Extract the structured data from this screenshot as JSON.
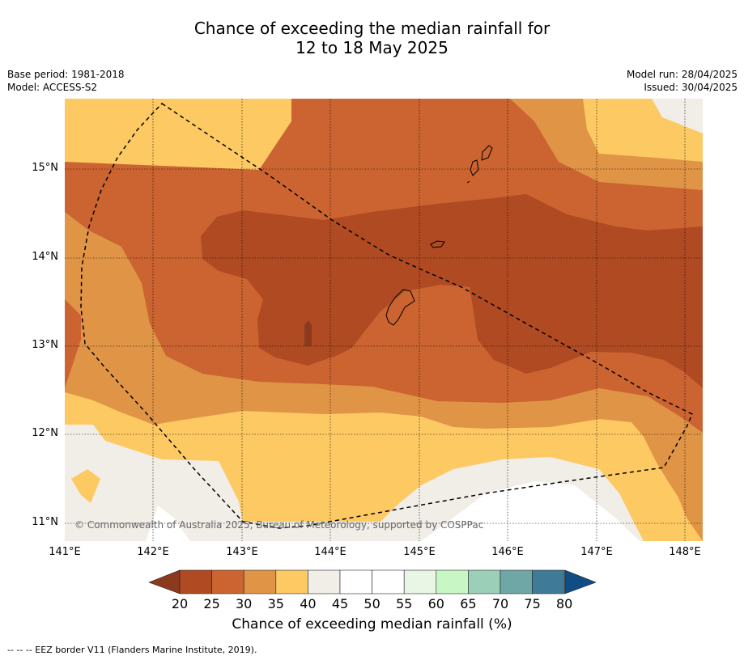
{
  "title_line1": "Chance of exceeding the median rainfall for",
  "title_line2": "12 to 18 May 2025",
  "base_period": "Base period: 1981-2018",
  "model": "Model: ACCESS-S2",
  "model_run": "Model run: 28/04/2025",
  "issued": "Issued: 30/04/2025",
  "copyright": "© Commonwealth of Australia 2025, Bureau of Meteorology, supported by COSPPac",
  "lat_labels": [
    "15°N",
    "14°N",
    "13°N",
    "12°N",
    "11°N"
  ],
  "lon_labels": [
    "141°E",
    "142°E",
    "143°E",
    "144°E",
    "145°E",
    "146°E",
    "147°E",
    "148°E"
  ],
  "colorbar": {
    "label": "Chance of exceeding median rainfall (%)",
    "ticks": [
      "20",
      "25",
      "30",
      "35",
      "40",
      "45",
      "50",
      "55",
      "60",
      "65",
      "70",
      "75",
      "80"
    ],
    "colors": [
      "#8b3a20",
      "#b04a22",
      "#cb6430",
      "#e09446",
      "#fdc963",
      "#f1ede7",
      "#ffffff",
      "#ffffff",
      "#e9f5e5",
      "#c8f7c5",
      "#9ccfb8",
      "#6fa7a7",
      "#3f7a98",
      "#114d85"
    ]
  },
  "footnote": "--  --  -- EEZ border V11 (Flanders Marine Institute, 2019)."
}
